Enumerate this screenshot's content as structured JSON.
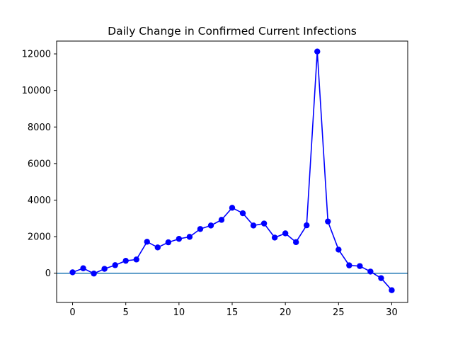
{
  "chart_data": {
    "type": "line",
    "title": "Daily Change in Confirmed Current Infections",
    "xlabel": "",
    "ylabel": "",
    "xlim": [
      -1.5,
      31.5
    ],
    "ylim": [
      -1600,
      12700
    ],
    "xticks": [
      0,
      5,
      10,
      15,
      20,
      25,
      30
    ],
    "yticks": [
      0,
      2000,
      4000,
      6000,
      8000,
      10000,
      12000
    ],
    "grid": false,
    "legend": "none",
    "reference_line": {
      "y": 0,
      "color": "#1f77b4"
    },
    "series": [
      {
        "color": "#0000ff",
        "marker": "circle",
        "x": [
          0,
          1,
          2,
          3,
          4,
          5,
          6,
          7,
          8,
          9,
          10,
          11,
          12,
          13,
          14,
          15,
          16,
          17,
          18,
          19,
          20,
          21,
          22,
          23,
          24,
          25,
          26,
          27,
          28,
          29,
          30
        ],
        "y": [
          50,
          270,
          -20,
          240,
          440,
          680,
          750,
          1720,
          1410,
          1690,
          1880,
          1990,
          2420,
          2610,
          2920,
          3580,
          3280,
          2610,
          2720,
          1950,
          2180,
          1700,
          2620,
          12130,
          2830,
          1290,
          430,
          390,
          90,
          -270,
          -930
        ]
      }
    ]
  }
}
